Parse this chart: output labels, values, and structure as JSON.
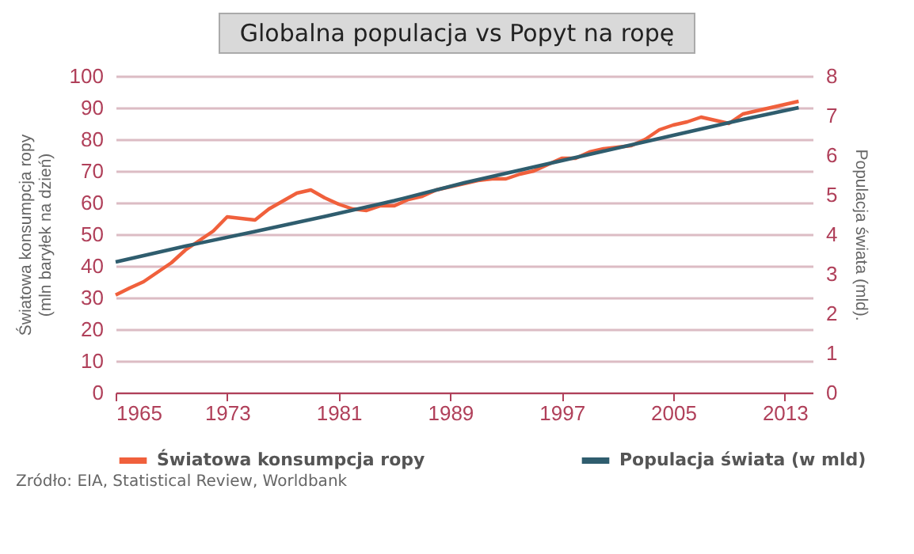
{
  "chart_data": {
    "type": "line",
    "title": "Globalna populacja vs Popyt na ropę",
    "ylabel": "Światowa konsumpcja ropy (mln baryłek na dzień)",
    "y2label": "Populacja świata (mld).",
    "xlim": [
      1965,
      2015
    ],
    "xticks": [
      1965,
      1973,
      1981,
      1989,
      1997,
      2005,
      2013
    ],
    "ylim": [
      0,
      100
    ],
    "yticks": [
      0,
      10,
      20,
      30,
      40,
      50,
      60,
      70,
      80,
      90,
      100
    ],
    "y2lim": [
      0,
      8
    ],
    "y2ticks": [
      0,
      1,
      2,
      3,
      4,
      5,
      6,
      7,
      8
    ],
    "grid": "y",
    "legend": "bottom",
    "marker": "none",
    "line_style": "solid",
    "annotations": [
      "Źródło: EIA, Statistical Review, Worldbank"
    ],
    "series": [
      {
        "name": "Światowa konsumpcja ropy",
        "color": "#f0603c",
        "x": [
          1965,
          1966,
          1967,
          1968,
          1969,
          1970,
          1971,
          1972,
          1973,
          1974,
          1975,
          1976,
          1977,
          1978,
          1979,
          1980,
          1981,
          1982,
          1983,
          1984,
          1985,
          1986,
          1987,
          1988,
          1989,
          1990,
          1991,
          1992,
          1993,
          1994,
          1995,
          1996,
          1997,
          1998,
          1999,
          2000,
          2001,
          2002,
          2003,
          2004,
          2005,
          2006,
          2007,
          2008,
          2009,
          2010,
          2011,
          2012,
          2013,
          2014
        ],
        "values": [
          30.8,
          33,
          35,
          38,
          41,
          45,
          48,
          51,
          55.5,
          55,
          54.5,
          58,
          60.5,
          63,
          64,
          61.5,
          59.5,
          58,
          57.5,
          59,
          59,
          61,
          62,
          64,
          65,
          66,
          67,
          67.5,
          67.5,
          69,
          70,
          72,
          74,
          74,
          76,
          77,
          77.5,
          78,
          80,
          83,
          84.5,
          85.5,
          87,
          86,
          85,
          88,
          89,
          90,
          91,
          92
        ]
      },
      {
        "name": "Populacja świata (w mld)",
        "color": "#2f5d6e",
        "axis": "y2",
        "x": [
          1965,
          1970,
          1975,
          1980,
          1985,
          1990,
          1995,
          2000,
          2005,
          2010,
          2014
        ],
        "values": [
          3.3,
          3.7,
          4.07,
          4.45,
          4.85,
          5.3,
          5.7,
          6.1,
          6.5,
          6.9,
          7.2
        ]
      }
    ]
  }
}
